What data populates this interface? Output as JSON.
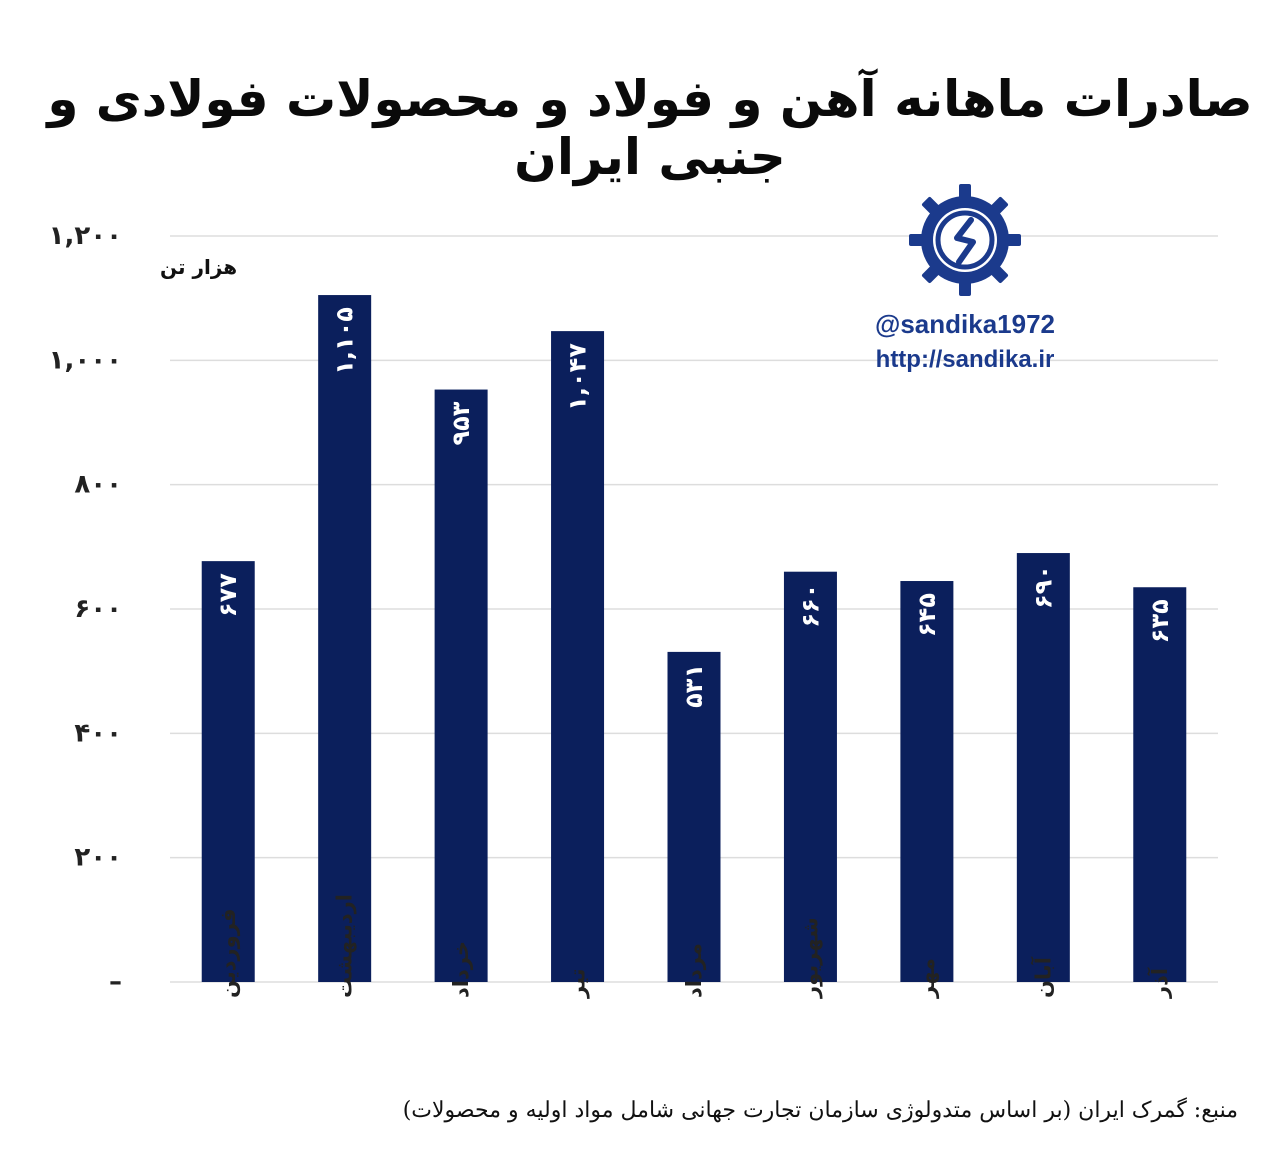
{
  "chart_data": {
    "type": "bar",
    "title": "صادرات ماهانه آهن و فولاد و محصولات فولادی و جنبی ایران",
    "unit": "هزار تن",
    "categories": [
      "فروردین",
      "اردیبهشت",
      "خرداد",
      "تیر",
      "مرداد",
      "شهریور",
      "مهر",
      "آبان",
      "آذر"
    ],
    "values": [
      677,
      1105,
      953,
      1047,
      531,
      660,
      645,
      690,
      635
    ],
    "value_labels": [
      "۶۷۷",
      "۱,۱۰۵",
      "۹۵۳",
      "۱,۰۴۷",
      "۵۳۱",
      "۶۶۰",
      "۶۴۵",
      "۶۹۰",
      "۶۳۵"
    ],
    "ylim": [
      0,
      1200
    ],
    "yticks": [
      0,
      200,
      400,
      600,
      800,
      1000,
      1200
    ],
    "ytick_labels": [
      "–",
      "۲۰۰",
      "۴۰۰",
      "۶۰۰",
      "۸۰۰",
      "۱,۰۰۰",
      "۱,۲۰۰"
    ],
    "grid": true,
    "bar_color": "#0b1f5c",
    "grid_color": "#dddddd"
  },
  "brand": {
    "handle": "@sandika1972",
    "url": "http://sandika.ir",
    "logo_icon": "gear-logo-icon",
    "color": "#1b3a8c"
  },
  "source": "منبع: گمرک ایران (بر اساس متدولوژی سازمان تجارت جهانی شامل مواد اولیه و محصولات)"
}
